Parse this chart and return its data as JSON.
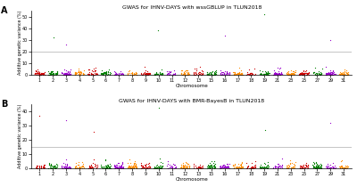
{
  "title_A": "GWAS for IHNV-DAYS with wssGBLUP in TLUN2018",
  "title_B": "GWAS for IHNV-DAYS with BMR-BayesB in TLUN2018",
  "ylabel": "Additive genetic variance (%)",
  "xlabel": "Chromosome",
  "chromosomes": [
    1,
    2,
    3,
    4,
    5,
    6,
    7,
    8,
    9,
    10,
    11,
    12,
    13,
    15,
    16,
    17,
    18,
    19,
    21,
    23,
    25,
    27,
    29,
    31
  ],
  "chrom_colors_cycle": [
    "#CC0000",
    "#008000",
    "#9900CC",
    "#FF8C00"
  ],
  "ylim_A": [
    0,
    55
  ],
  "ylim_B": [
    0,
    45
  ],
  "yticks_A": [
    0,
    10,
    20,
    30,
    40,
    50
  ],
  "yticks_B": [
    0,
    10,
    20,
    30,
    40
  ],
  "threshold_color": "#BBBBBB",
  "threshold_A": 20,
  "threshold_B": 15,
  "label_A": "A",
  "label_B": "B",
  "background_color": "#ffffff",
  "special_A": {
    "2": 32,
    "3": 26,
    "10": 38,
    "16": 34,
    "19": 52,
    "29": 30
  },
  "special_B": {
    "1": 37,
    "3": 34,
    "5": 26,
    "10": 43,
    "19": 27,
    "29": 32
  }
}
